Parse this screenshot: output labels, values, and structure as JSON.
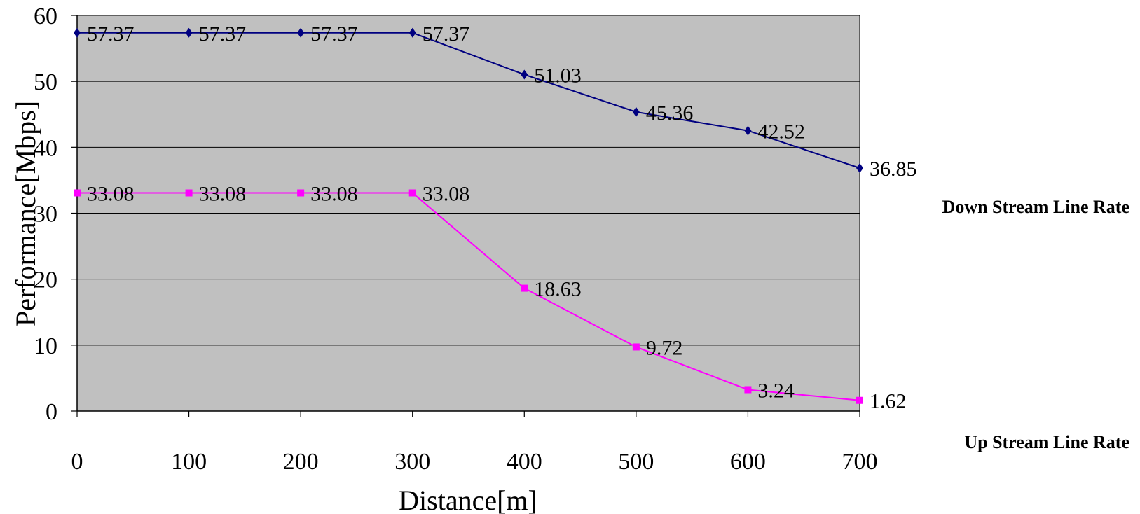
{
  "chart_data": {
    "type": "line",
    "x": [
      0,
      100,
      200,
      300,
      400,
      500,
      600,
      700
    ],
    "series": [
      {
        "name": "Down Stream Line Rate",
        "values": [
          57.37,
          57.37,
          57.37,
          57.37,
          51.03,
          45.36,
          42.52,
          36.85
        ],
        "labels": [
          "57.37",
          "57.37",
          "57.37",
          "57.37",
          "51.03",
          "45.36",
          "42.52",
          "36.85"
        ],
        "color": "#000080",
        "marker": "diamond"
      },
      {
        "name": "Up Stream Line Rate",
        "values": [
          33.08,
          33.08,
          33.08,
          33.08,
          18.63,
          9.72,
          3.24,
          1.62
        ],
        "labels": [
          "33.08",
          "33.08",
          "33.08",
          "33.08",
          "18.63",
          "9.72",
          "3.24",
          "1.62"
        ],
        "color": "#ff00ff",
        "marker": "square"
      }
    ],
    "xlabel": "Distance[m]",
    "ylabel": "Performance[Mbps]",
    "xlim": [
      0,
      700
    ],
    "ylim": [
      0,
      60
    ],
    "xticks": [
      "0",
      "100",
      "200",
      "300",
      "400",
      "500",
      "600",
      "700"
    ],
    "yticks": [
      "0",
      "10",
      "20",
      "30",
      "40",
      "50",
      "60"
    ],
    "grid": true,
    "plot_background": "#c0c0c0",
    "legend_position": "right"
  }
}
